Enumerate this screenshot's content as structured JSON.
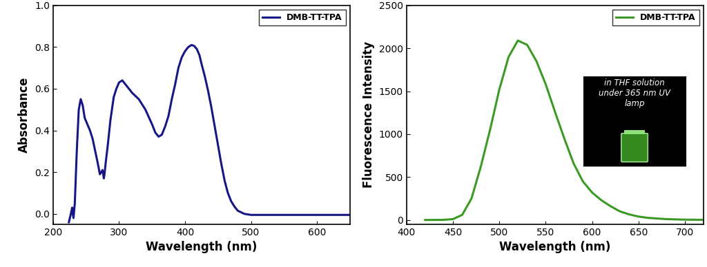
{
  "chart_data": [
    {
      "type": "line",
      "x_label": "Wavelength (nm)",
      "y_label": "Absorbance",
      "x": [
        224,
        227,
        229,
        230,
        231,
        233,
        236,
        239,
        242,
        245,
        248,
        252,
        256,
        260,
        264,
        268,
        271,
        273,
        275,
        276,
        277,
        278,
        280,
        283,
        287,
        292,
        296,
        300,
        305,
        310,
        315,
        320,
        330,
        340,
        350,
        355,
        360,
        365,
        370,
        375,
        380,
        385,
        390,
        395,
        400,
        405,
        410,
        414,
        418,
        422,
        425,
        430,
        435,
        440,
        445,
        450,
        455,
        460,
        465,
        470,
        475,
        480,
        490,
        500,
        550,
        600,
        650
      ],
      "series": [
        {
          "name": "DMB-TT-TPA",
          "color": "#161686",
          "values": [
            -0.04,
            0.0,
            0.03,
            0.0,
            -0.02,
            0.05,
            0.3,
            0.5,
            0.55,
            0.52,
            0.46,
            0.43,
            0.4,
            0.36,
            0.3,
            0.24,
            0.19,
            0.2,
            0.21,
            0.19,
            0.17,
            0.19,
            0.25,
            0.33,
            0.45,
            0.56,
            0.6,
            0.63,
            0.64,
            0.62,
            0.6,
            0.58,
            0.55,
            0.5,
            0.43,
            0.39,
            0.37,
            0.38,
            0.42,
            0.47,
            0.55,
            0.62,
            0.7,
            0.75,
            0.78,
            0.8,
            0.81,
            0.805,
            0.79,
            0.76,
            0.72,
            0.66,
            0.59,
            0.51,
            0.42,
            0.33,
            0.24,
            0.16,
            0.1,
            0.06,
            0.035,
            0.015,
            0.0,
            -0.005,
            -0.005,
            -0.005,
            -0.005
          ]
        }
      ],
      "xlim": [
        200,
        650
      ],
      "xticks": [
        200,
        300,
        400,
        500,
        600
      ],
      "ylim": [
        -0.05,
        1.0
      ],
      "yticks": [
        {
          "value": 0.0,
          "label": "0.0"
        },
        {
          "value": 0.2,
          "label": "0.2"
        },
        {
          "value": 0.4,
          "label": "0.4"
        },
        {
          "value": 0.6,
          "label": "0.6"
        },
        {
          "value": 0.8,
          "label": "0.8"
        },
        {
          "value": 1.0,
          "label": "1.0"
        }
      ],
      "legend": "upper right"
    },
    {
      "type": "line",
      "x_label": "Wavelength (nm)",
      "y_label": "Fluorescence Intensity",
      "annotation": "in THF solution under 365 nm UV lamp",
      "x": [
        420,
        430,
        440,
        450,
        460,
        470,
        480,
        490,
        500,
        510,
        520,
        530,
        540,
        550,
        560,
        570,
        580,
        590,
        600,
        610,
        620,
        630,
        640,
        650,
        660,
        680,
        700,
        720
      ],
      "series": [
        {
          "name": "DMB-TT-TPA",
          "color": "#3a9a23",
          "values": [
            0,
            1,
            2,
            10,
            60,
            250,
            620,
            1050,
            1520,
            1900,
            2090,
            2040,
            1850,
            1580,
            1260,
            950,
            660,
            450,
            320,
            230,
            160,
            100,
            65,
            40,
            25,
            10,
            4,
            2
          ]
        }
      ],
      "xlim": [
        400,
        720
      ],
      "xticks": [
        400,
        450,
        500,
        550,
        600,
        650,
        700
      ],
      "ylim": [
        -50,
        2500
      ],
      "yticks": [
        0,
        500,
        1000,
        1500,
        2000,
        2500
      ],
      "legend": "upper right"
    }
  ]
}
